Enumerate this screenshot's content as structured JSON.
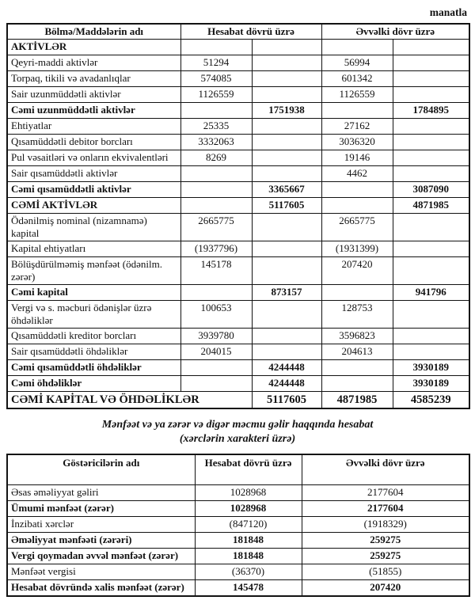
{
  "page": {
    "currency_note": "manatla"
  },
  "balance_table": {
    "headers": {
      "name": "Bölmə/Maddələrin adı",
      "current_period": "Hesabat dövrü üzrə",
      "previous_period": "Əvvəlki dövr üzrə"
    },
    "rows": [
      {
        "label": "AKTİVLƏR",
        "bold": true,
        "values": [
          "",
          "",
          "",
          ""
        ]
      },
      {
        "label": "Qeyri-maddi aktivlər",
        "bold": false,
        "values": [
          "51294",
          "",
          "56994",
          ""
        ]
      },
      {
        "label": "Torpaq, tikili və avadanlıqlar",
        "bold": false,
        "values": [
          "574085",
          "",
          "601342",
          ""
        ]
      },
      {
        "label": "Sair uzunmüddətli aktivlər",
        "bold": false,
        "values": [
          "1126559",
          "",
          "1126559",
          ""
        ]
      },
      {
        "label": "Cəmi uzunmüddətli aktivlər",
        "bold": true,
        "values": [
          "",
          "1751938",
          "",
          "1784895"
        ]
      },
      {
        "label": "Ehtiyatlar",
        "bold": false,
        "values": [
          "25335",
          "",
          "27162",
          ""
        ]
      },
      {
        "label": "Qısamüddətli debitor borcları",
        "bold": false,
        "values": [
          "3332063",
          "",
          "3036320",
          ""
        ]
      },
      {
        "label": "Pul vəsaitləri və onların ekvivalentləri",
        "bold": false,
        "values": [
          "8269",
          "",
          "19146",
          ""
        ]
      },
      {
        "label": "Sair qısamüddətli aktivlər",
        "bold": false,
        "values": [
          "",
          "",
          "4462",
          ""
        ]
      },
      {
        "label": "Cəmi qısamüddətli aktivlər",
        "bold": true,
        "values": [
          "",
          "3365667",
          "",
          "3087090"
        ]
      },
      {
        "label": "CƏMİ AKTİVLƏR",
        "bold": true,
        "values": [
          "",
          "5117605",
          "",
          "4871985"
        ]
      },
      {
        "label": "Ödənilmiş nominal (nizamnamə) kapital",
        "bold": false,
        "values": [
          "2665775",
          "",
          "2665775",
          ""
        ]
      },
      {
        "label": "Kapital ehtiyatları",
        "bold": false,
        "values": [
          "(1937796)",
          "",
          "(1931399)",
          ""
        ]
      },
      {
        "label": "Bölüşdürülməmiş mənfəət (ödənilm. zərər)",
        "bold": false,
        "values": [
          "145178",
          "",
          "207420",
          ""
        ]
      },
      {
        "label": "Cəmi kapital",
        "bold": true,
        "values": [
          "",
          "873157",
          "",
          "941796"
        ]
      },
      {
        "label": "Vergi və s. məcburi ödənişlər üzrə öhdəliklər",
        "bold": false,
        "values": [
          "100653",
          "",
          "128753",
          ""
        ]
      },
      {
        "label": "Qısamüddətli kreditor borcları",
        "bold": false,
        "values": [
          "3939780",
          "",
          "3596823",
          ""
        ]
      },
      {
        "label": "Sair qısamüddətli öhdəliklər",
        "bold": false,
        "values": [
          "204015",
          "",
          "204613",
          ""
        ]
      },
      {
        "label": "Cəmi qısamüddətli öhdəliklər",
        "bold": true,
        "values": [
          "",
          "4244448",
          "",
          "3930189"
        ]
      },
      {
        "label": "Cəmi öhdəliklər",
        "bold": true,
        "values": [
          "",
          "4244448",
          "",
          "3930189"
        ]
      },
      {
        "label": "CƏMİ KAPİTAL VƏ ÖHDƏLİKLƏR",
        "bold": true,
        "big": true,
        "label_colspan": 2,
        "values": [
          "5117605",
          "4871985",
          "4585239"
        ]
      }
    ]
  },
  "income_statement": {
    "title_line1": "Mənfəət və ya zərər və digər məcmu gəlir haqqında hesabat",
    "title_line2": "(xərclərin xarakteri üzrə)",
    "headers": {
      "name": "Göstəricilərin adı",
      "current_period": "Hesabat dövrü üzrə",
      "previous_period": "Əvvəlki dövr üzrə"
    },
    "rows": [
      {
        "label": "Əsas əməliyyat gəliri",
        "bold": false,
        "values": [
          "1028968",
          "2177604"
        ]
      },
      {
        "label": "Ümumi mənfəət (zərər)",
        "bold": true,
        "values": [
          "1028968",
          "2177604"
        ]
      },
      {
        "label": "İnzibati xərclər",
        "bold": false,
        "values": [
          "(847120)",
          "(1918329)"
        ]
      },
      {
        "label": "Əməliyyat mənfəəti (zərəri)",
        "bold": true,
        "values": [
          "181848",
          "259275"
        ]
      },
      {
        "label": "Vergi qoymadan əvvəl mənfəət (zərər)",
        "bold": true,
        "values": [
          "181848",
          "259275"
        ]
      },
      {
        "label": "Mənfəət vergisi",
        "bold": false,
        "values": [
          "(36370)",
          "(51855)"
        ]
      },
      {
        "label": "Hesabat dövründə xalis mənfəət (zərər)",
        "bold": true,
        "values": [
          "145478",
          "207420"
        ]
      }
    ]
  }
}
